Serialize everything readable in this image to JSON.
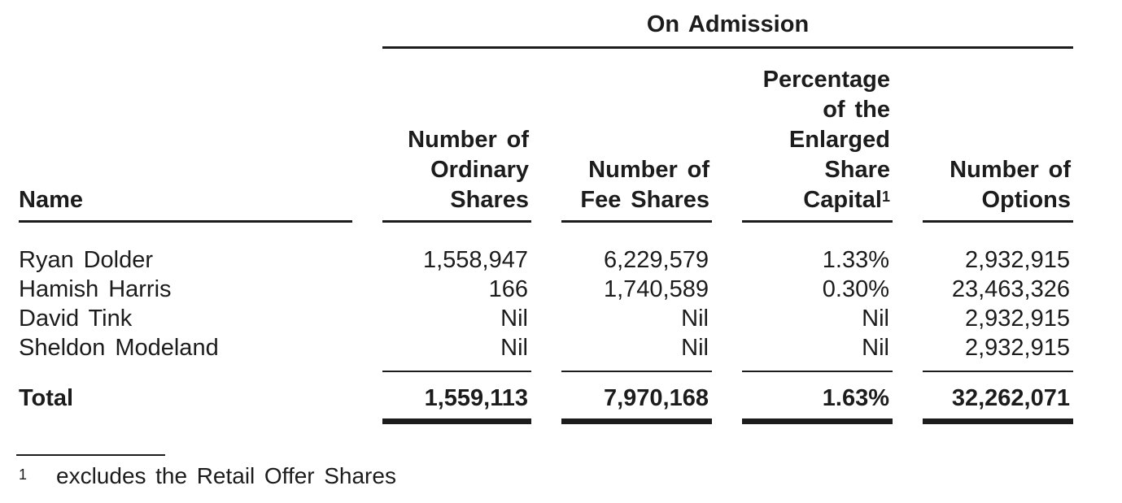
{
  "colors": {
    "text": "#1c1c1c",
    "background": "#ffffff"
  },
  "table": {
    "group_header": "On Admission",
    "columns": {
      "name": "Name",
      "ordinary_shares": "Number of\nOrdinary\nShares",
      "fee_shares": "Number of\nFee Shares",
      "percentage": "Percentage\nof the\nEnlarged\nShare\nCapital",
      "percentage_footnote_marker": "1",
      "options": "Number of\nOptions"
    },
    "rows": [
      {
        "name": "Ryan Dolder",
        "ordinary_shares": "1,558,947",
        "fee_shares": "6,229,579",
        "percentage": "1.33%",
        "options": "2,932,915"
      },
      {
        "name": "Hamish Harris",
        "ordinary_shares": "166",
        "fee_shares": "1,740,589",
        "percentage": "0.30%",
        "options": "23,463,326"
      },
      {
        "name": "David Tink",
        "ordinary_shares": "Nil",
        "fee_shares": "Nil",
        "percentage": "Nil",
        "options": "2,932,915"
      },
      {
        "name": "Sheldon Modeland",
        "ordinary_shares": "Nil",
        "fee_shares": "Nil",
        "percentage": "Nil",
        "options": "2,932,915"
      }
    ],
    "total": {
      "label": "Total",
      "ordinary_shares": "1,559,113",
      "fee_shares": "7,970,168",
      "percentage": "1.63%",
      "options": "32,262,071"
    }
  },
  "footnote": {
    "marker": "1",
    "text": "excludes the Retail Offer Shares"
  }
}
